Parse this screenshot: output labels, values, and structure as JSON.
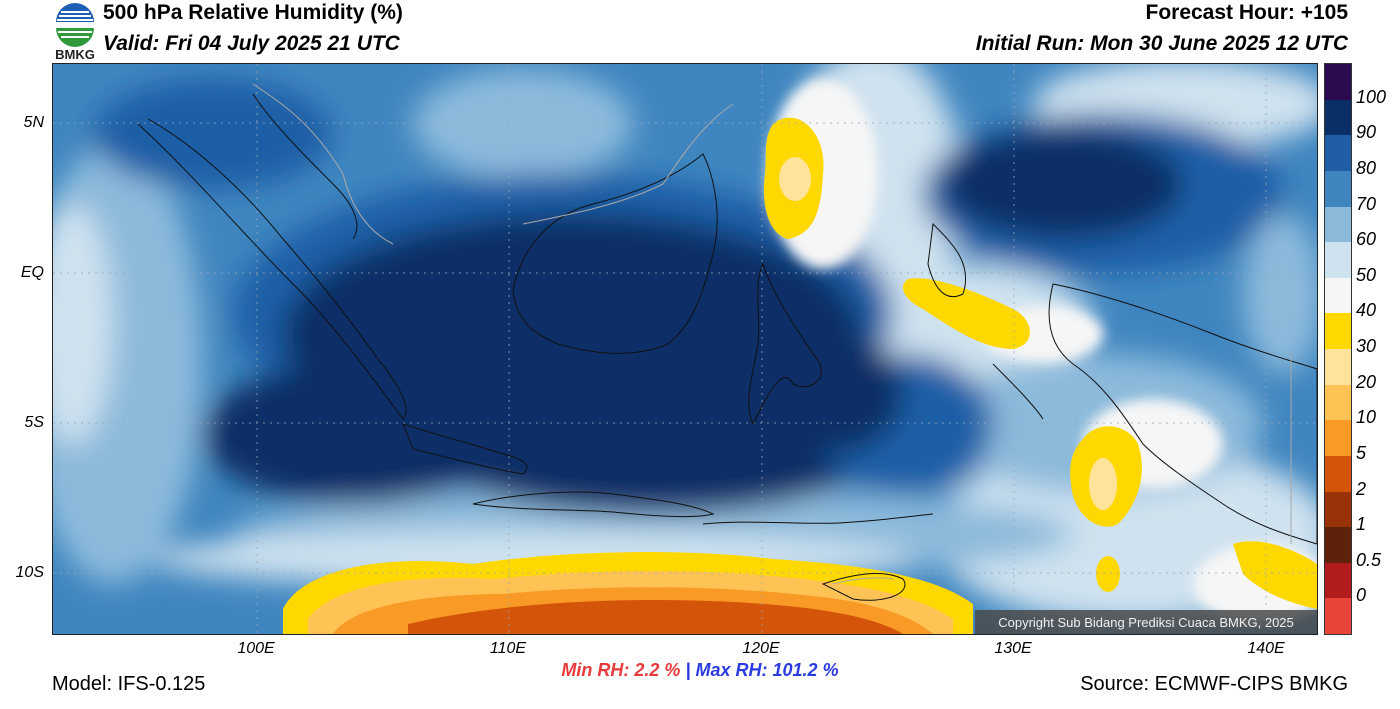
{
  "header": {
    "title": "500 hPa Relative Humidity (%)",
    "valid": "Valid: Fri 04 July 2025 21 UTC",
    "forecast_hour": "Forecast Hour: +105",
    "initial_run": "Initial Run: Mon 30 June 2025 12 UTC",
    "logo_text": "BMKG"
  },
  "axes": {
    "lat_labels": [
      "5N",
      "EQ",
      "5S",
      "10S"
    ],
    "lon_labels": [
      "100E",
      "110E",
      "120E",
      "130E",
      "140E"
    ]
  },
  "colorbar": {
    "labels": [
      "100",
      "90",
      "80",
      "70",
      "60",
      "50",
      "40",
      "30",
      "20",
      "10",
      "5",
      "2",
      "1",
      "0.5",
      "0"
    ],
    "colors": [
      "#2b0a4e",
      "#0a2f66",
      "#1f5ea6",
      "#3f86c0",
      "#8cbadb",
      "#cfe2ef",
      "#f6f6f6",
      "#ffd800",
      "#ffe39a",
      "#ffc355",
      "#f99a26",
      "#d4550a",
      "#9a3208",
      "#5e220a",
      "#b11b1b",
      "#e8443a"
    ]
  },
  "stats": {
    "min_rh": "Min RH:   2.2 %",
    "separator": "|",
    "max_rh": "Max RH: 101.2 %"
  },
  "footer": {
    "model": "Model: IFS-0.125",
    "source": "Source: ECMWF-CIPS BMKG",
    "copyright": "Copyright Sub Bidang Prediksi Cuaca BMKG, 2025"
  }
}
